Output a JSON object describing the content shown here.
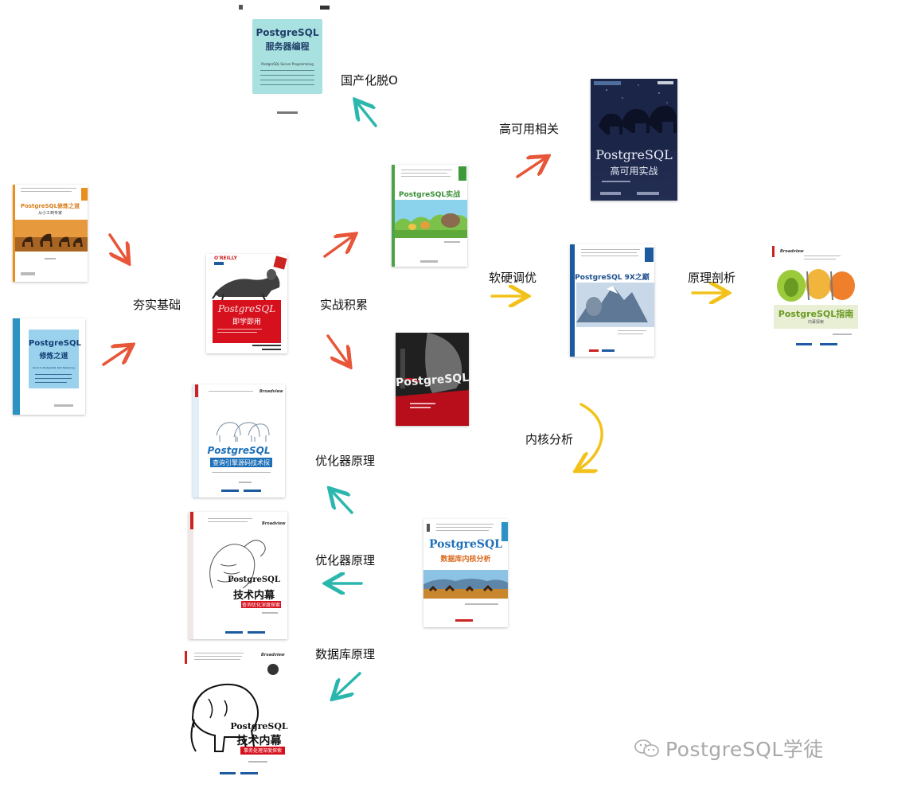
{
  "labels": {
    "guochanhua": "国产化脱O",
    "gaokeyong": "高可用相关",
    "hangshi": "夯实基础",
    "shizhan": "实战积累",
    "ruanying": "软硬调优",
    "yuanli": "原理剖析",
    "neihe": "内核分析",
    "youhuaqi1": "优化器原理",
    "youhuaqi2": "优化器原理",
    "shujuku": "数据库原理"
  },
  "books": {
    "server_programming": {
      "title": "PostgreSQL",
      "subtitle": "服务器编程",
      "en": "PostgreSQL Server Programming"
    },
    "practice_top": {
      "title": "PostgreSQL实战"
    },
    "ha": {
      "title": "PostgreSQL",
      "subtitle": "高可用实战"
    },
    "xiulian_orange": {
      "title": "PostgreSQL修炼之道",
      "subtitle": "从小工到专家"
    },
    "xiulian_blue": {
      "title": "PostgreSQL",
      "subtitle": "修炼之道",
      "en": "Road to PostgreSQL Skill Mastering"
    },
    "jixue": {
      "brand": "O'REILLY",
      "title": "PostgreSQL",
      "subtitle": "即学即用"
    },
    "dark": {
      "title": "PostgreSQL"
    },
    "9x": {
      "title": "PostgreSQL 9X之巅"
    },
    "guide": {
      "brand": "Broadview",
      "title": "PostgreSQL指南",
      "subtitle": "内幕探索"
    },
    "query_engine": {
      "title": "PostgreSQL",
      "subtitle": "查询引擎源码技术探析",
      "brand": "Broadview"
    },
    "kernel": {
      "title": "PostgreSQL",
      "subtitle": "数据库内核分析"
    },
    "insider_opt": {
      "title": "PostgreSQL",
      "subtitle": "技术内幕",
      "tag": "查询优化深度探索",
      "brand": "Broadview"
    },
    "insider_tx": {
      "title": "PostgreSQL",
      "subtitle": "技术内幕",
      "tag": "事务处理深度探索",
      "brand": "Broadview"
    }
  },
  "watermark": "PostgreSQL学徒",
  "colors": {
    "red": "#e8563a",
    "teal": "#2bb7ad",
    "yellow": "#f2c21b"
  }
}
